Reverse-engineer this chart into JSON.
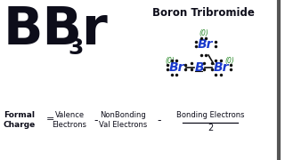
{
  "bg_color": "#ffffff",
  "formula_color": "#0d0d1a",
  "compound_name": "Boron Tribromide",
  "dot_color": "#111111",
  "blue_color": "#1a3acc",
  "green_color": "#2a8a2a",
  "formal_charge_label_bold": "Formal\nCharge",
  "term1": "Valence\nElectrons",
  "term2": "NonBonding\nVal Electrons",
  "term3_top": "Bonding Electrons",
  "term3_bot": "2",
  "right_border_color": "#888888"
}
